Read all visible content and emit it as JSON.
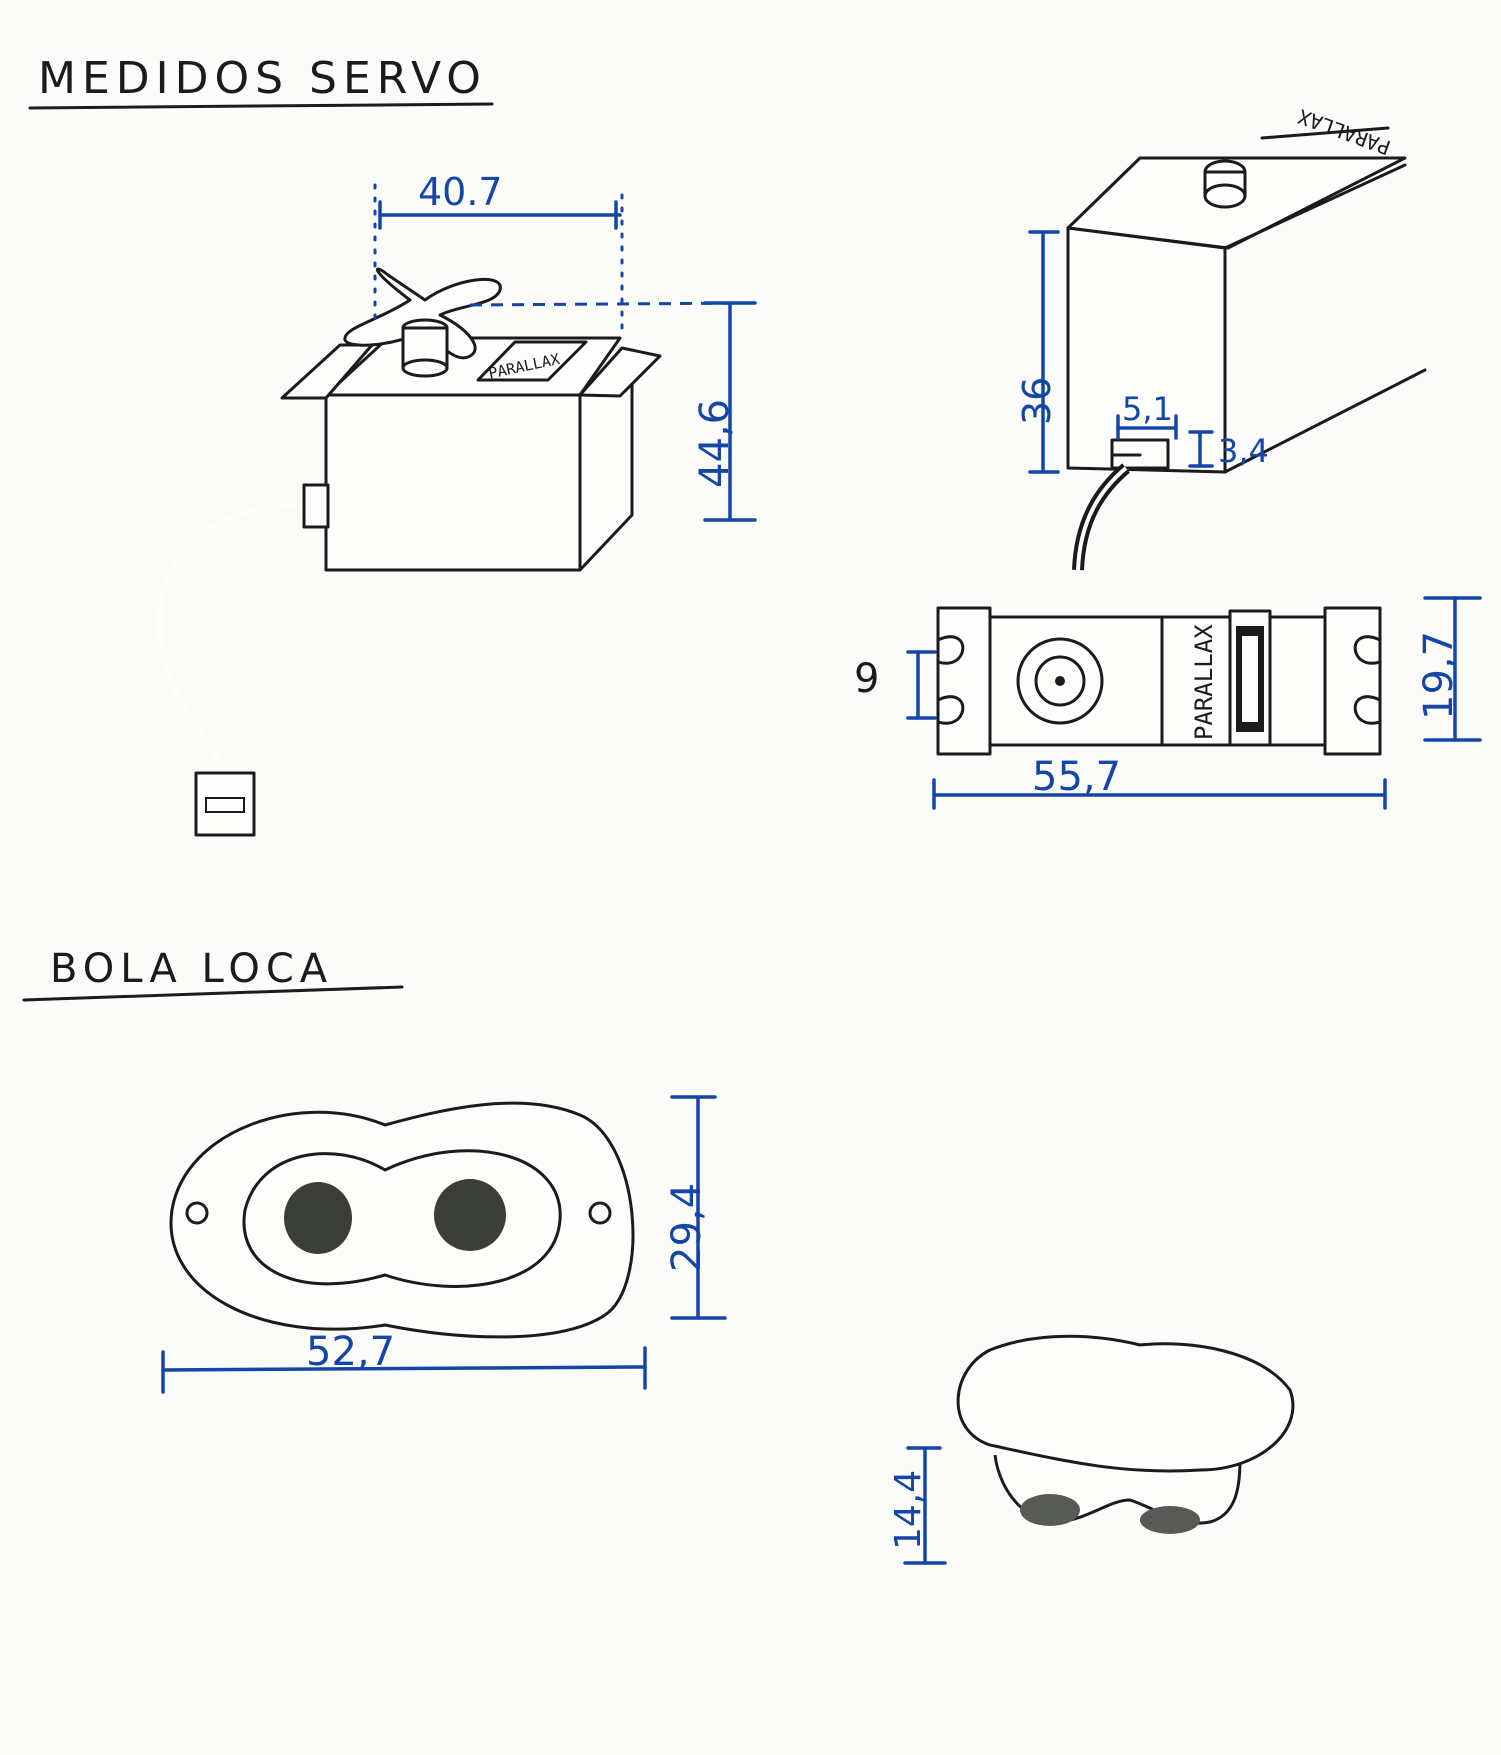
{
  "sections": {
    "servo_title": "MEDIDOS SERVO",
    "ball_title": "BOLA LOCA"
  },
  "servo": {
    "brand_label": "PARALLAX",
    "dimensions": {
      "width_top": "40.7",
      "height_front": "44,6",
      "height_side": "36",
      "connector_width": "5,1",
      "connector_height": "3,4",
      "tab_width": "9",
      "depth": "19,7",
      "length": "55,7"
    }
  },
  "ball": {
    "dimensions": {
      "length": "52,7",
      "height": "29,4",
      "side_height": "14,4"
    }
  },
  "colors": {
    "ink": "#1b1b1b",
    "dimension_blue": "#1446a8",
    "paper": "#fbfbf9"
  }
}
